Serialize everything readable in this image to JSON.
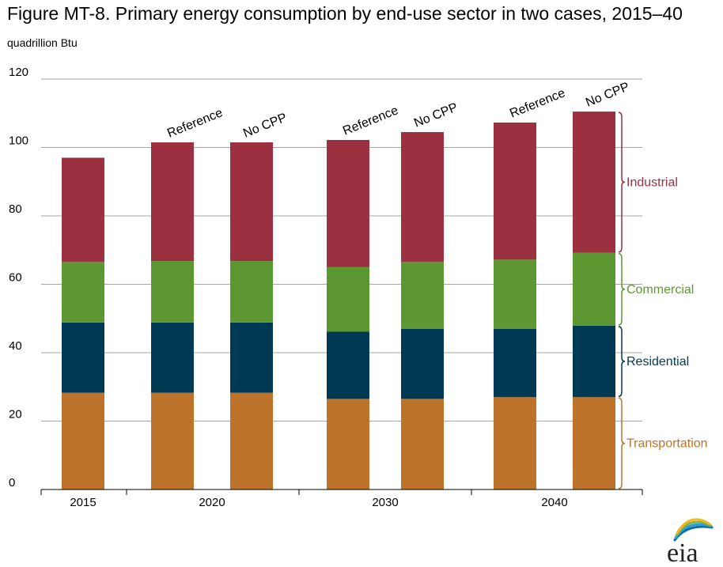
{
  "title": "Figure MT-8. Primary energy consumption by end-use sector in two cases, 2015–40",
  "unit_label": "quadrillion Btu",
  "logo_text": "eia",
  "colors": {
    "Transportation": "#bd732a",
    "Residential": "#003953",
    "Commercial": "#5d9732",
    "Industrial": "#9b3041",
    "grid": "#a6a6a6",
    "axis": "#000000"
  },
  "chart_data": {
    "type": "bar",
    "stacked": true,
    "title": "Figure MT-8. Primary energy consumption by end-use sector in two cases, 2015–40",
    "ylabel": "quadrillion Btu",
    "xlabel": "",
    "ylim": [
      0,
      120
    ],
    "yticks": [
      0,
      20,
      40,
      60,
      80,
      100,
      120
    ],
    "grid": true,
    "year_groups": [
      {
        "label": "2015",
        "bars": [
          0
        ]
      },
      {
        "label": "2020",
        "bars": [
          1,
          2
        ]
      },
      {
        "label": "2030",
        "bars": [
          3,
          4
        ]
      },
      {
        "label": "2040",
        "bars": [
          5,
          6
        ]
      }
    ],
    "bars": [
      {
        "year": "2015",
        "case": ""
      },
      {
        "year": "2020",
        "case": "Reference"
      },
      {
        "year": "2020",
        "case": "No CPP"
      },
      {
        "year": "2030",
        "case": "Reference"
      },
      {
        "year": "2030",
        "case": "No CPP"
      },
      {
        "year": "2040",
        "case": "Reference"
      },
      {
        "year": "2040",
        "case": "No CPP"
      }
    ],
    "series": [
      {
        "name": "Transportation",
        "values": [
          28.3,
          28.3,
          28.3,
          26.5,
          26.5,
          27.0,
          27.0
        ]
      },
      {
        "name": "Residential",
        "values": [
          20.5,
          20.5,
          20.5,
          19.7,
          20.5,
          20.0,
          20.9
        ]
      },
      {
        "name": "Commercial",
        "values": [
          17.8,
          18.0,
          18.0,
          18.8,
          19.6,
          20.2,
          21.3
        ]
      },
      {
        "name": "Industrial",
        "values": [
          30.4,
          34.7,
          34.7,
          37.2,
          37.9,
          40.1,
          41.3
        ]
      }
    ],
    "legend_labels": [
      "Industrial",
      "Commercial",
      "Residential",
      "Transportation"
    ]
  }
}
